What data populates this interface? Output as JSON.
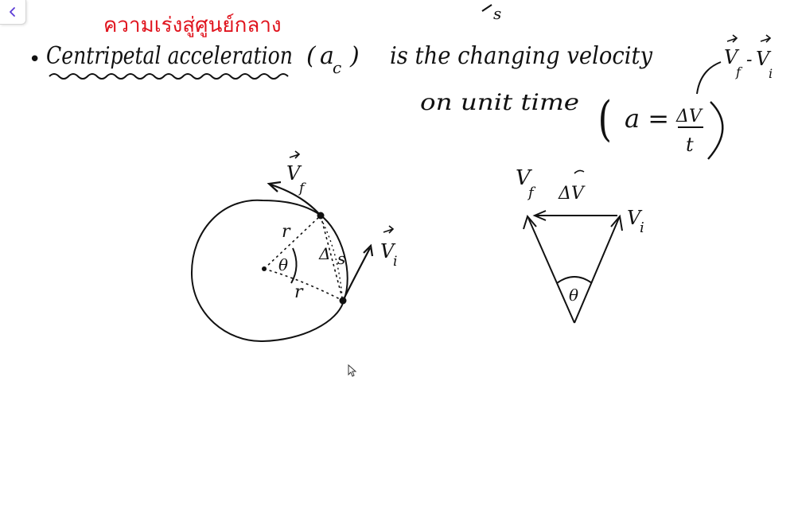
{
  "toolbar": {
    "back_icon": "chevron-left-icon"
  },
  "colors": {
    "ink": "#111111",
    "annotation": "#e0141e",
    "accent": "#5b3bd6"
  },
  "note": {
    "thai_annotation": "ความเร่งสู่ศูนย์กลาง",
    "top_fragment": "s",
    "bullet": "•",
    "term": "Centripetal acceleration",
    "symbol_open": "(",
    "symbol_a": "a",
    "symbol_sub": "c",
    "symbol_close": ")",
    "line1_rest": "is the changing velocity",
    "line2": "on unit time",
    "formula_open": "(",
    "formula_lhs": "a =",
    "formula_num": "ΔV",
    "formula_den": "t",
    "formula_close": ")",
    "side_note_vf": "V",
    "side_note_vf_sub": "f",
    "side_note_minus": "-",
    "side_note_vi": "V",
    "side_note_vi_sub": "i"
  },
  "circle_diagram": {
    "vf_label": "V",
    "vf_sub": "f",
    "vi_label": "V",
    "vi_sub": "i",
    "r_top": "r",
    "r_bottom": "r",
    "theta": "θ",
    "delta_s": "Δ",
    "s": "s"
  },
  "triangle_diagram": {
    "vf_label": "V",
    "vf_sub": "f",
    "dv_label": "ΔV",
    "vi_label": "V",
    "vi_sub": "i",
    "theta": "θ"
  }
}
